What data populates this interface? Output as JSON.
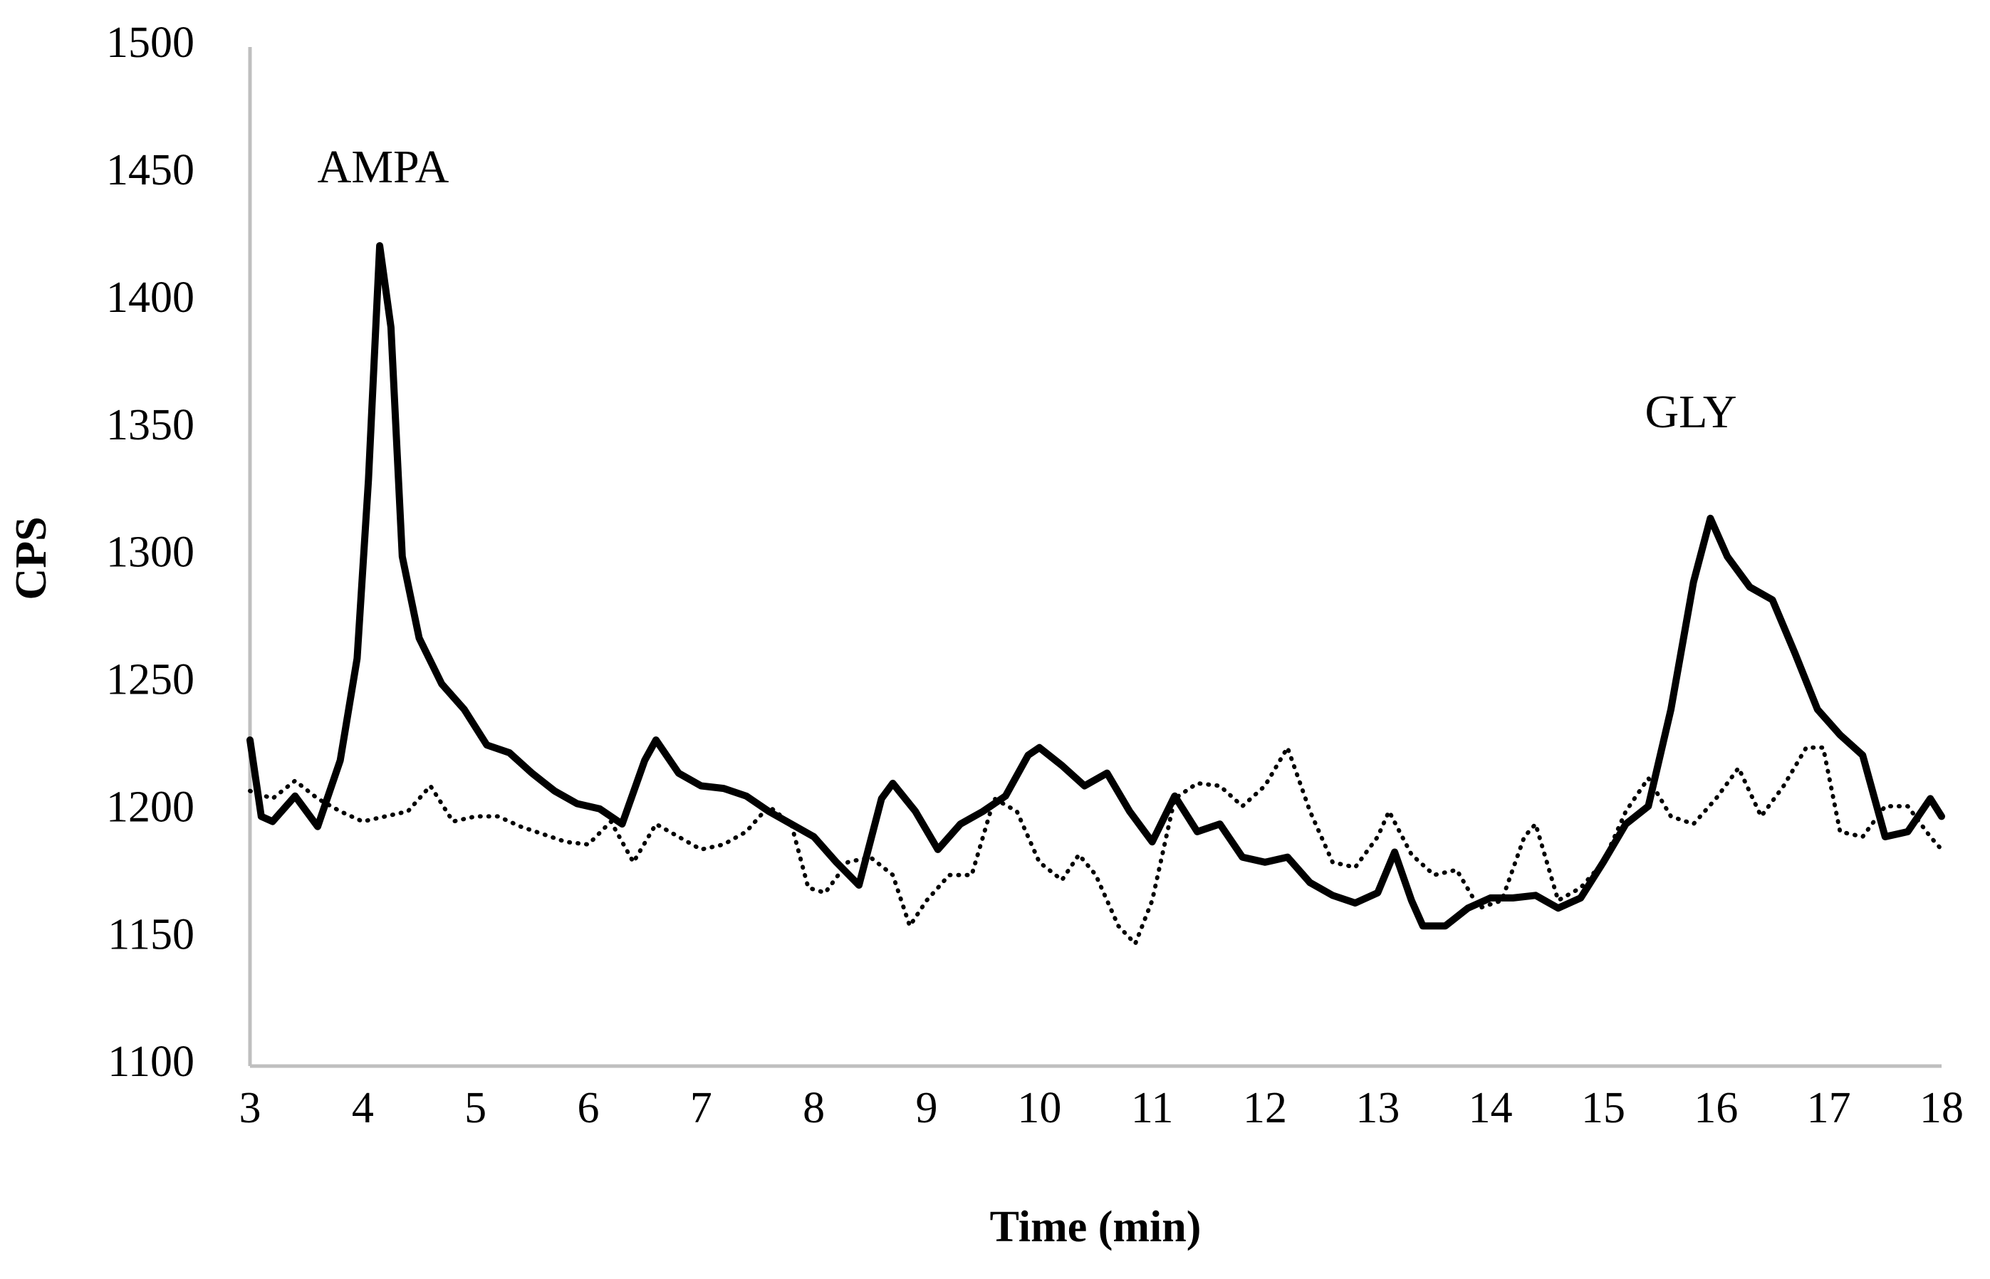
{
  "chart_data": {
    "type": "line",
    "x_label": "Time (min)",
    "y_label": "CPS",
    "annotations": [
      "AMPA",
      "GLY"
    ],
    "xlim": [
      3,
      18
    ],
    "xticks": [
      3,
      4,
      5,
      6,
      7,
      8,
      9,
      10,
      11,
      12,
      13,
      14,
      15,
      16,
      17,
      18
    ],
    "ylim": [
      1100,
      1500
    ],
    "yticks": [
      1100,
      1150,
      1200,
      1250,
      1300,
      1350,
      1400,
      1450,
      1500
    ],
    "grid": false,
    "axis_color": "#bfbfbf",
    "series": [
      {
        "color": "#000000",
        "dash": "solid",
        "x": [
          3.0,
          3.1,
          3.2,
          3.4,
          3.6,
          3.8,
          3.95,
          4.05,
          4.15,
          4.25,
          4.35,
          4.5,
          4.7,
          4.9,
          5.1,
          5.3,
          5.5,
          5.7,
          5.9,
          6.1,
          6.3,
          6.5,
          6.6,
          6.8,
          7.0,
          7.2,
          7.4,
          7.6,
          7.8,
          8.0,
          8.2,
          8.4,
          8.6,
          8.7,
          8.9,
          9.1,
          9.3,
          9.5,
          9.7,
          9.9,
          10.0,
          10.2,
          10.4,
          10.6,
          10.8,
          11.0,
          11.2,
          11.4,
          11.6,
          11.8,
          12.0,
          12.2,
          12.4,
          12.6,
          12.8,
          13.0,
          13.15,
          13.3,
          13.4,
          13.6,
          13.8,
          14.0,
          14.2,
          14.4,
          14.6,
          14.8,
          15.0,
          15.2,
          15.4,
          15.6,
          15.8,
          15.95,
          16.1,
          16.3,
          16.5,
          16.7,
          16.9,
          17.1,
          17.3,
          17.5,
          17.7,
          17.9,
          18.0
        ],
        "values": [
          1228,
          1198,
          1196,
          1206,
          1194,
          1220,
          1260,
          1330,
          1422,
          1390,
          1300,
          1268,
          1250,
          1240,
          1226,
          1223,
          1215,
          1208,
          1203,
          1201,
          1195,
          1220,
          1228,
          1215,
          1210,
          1209,
          1206,
          1200,
          1195,
          1190,
          1180,
          1171,
          1205,
          1211,
          1200,
          1185,
          1195,
          1200,
          1206,
          1222,
          1225,
          1218,
          1210,
          1215,
          1200,
          1188,
          1206,
          1192,
          1195,
          1182,
          1180,
          1182,
          1172,
          1167,
          1164,
          1168,
          1184,
          1165,
          1155,
          1155,
          1162,
          1166,
          1166,
          1167,
          1162,
          1166,
          1180,
          1195,
          1202,
          1240,
          1290,
          1315,
          1300,
          1288,
          1283,
          1262,
          1240,
          1230,
          1222,
          1190,
          1192,
          1205,
          1198
        ]
      },
      {
        "color": "#000000",
        "dash": "dotted",
        "x": [
          3.0,
          3.2,
          3.4,
          3.6,
          3.8,
          4.0,
          4.2,
          4.4,
          4.6,
          4.8,
          5.0,
          5.2,
          5.4,
          5.6,
          5.8,
          6.0,
          6.2,
          6.4,
          6.6,
          6.8,
          7.0,
          7.2,
          7.4,
          7.6,
          7.8,
          7.95,
          8.1,
          8.3,
          8.5,
          8.7,
          8.85,
          9.0,
          9.2,
          9.4,
          9.6,
          9.8,
          10.0,
          10.2,
          10.35,
          10.5,
          10.7,
          10.85,
          11.0,
          11.2,
          11.4,
          11.6,
          11.8,
          12.0,
          12.2,
          12.4,
          12.6,
          12.8,
          13.0,
          13.1,
          13.3,
          13.5,
          13.7,
          13.9,
          14.1,
          14.3,
          14.4,
          14.6,
          14.8,
          15.0,
          15.2,
          15.4,
          15.6,
          15.8,
          16.0,
          16.2,
          16.4,
          16.6,
          16.8,
          16.95,
          17.1,
          17.3,
          17.5,
          17.7,
          17.9,
          18.0
        ],
        "values": [
          1208,
          1205,
          1212,
          1205,
          1200,
          1196,
          1198,
          1200,
          1210,
          1196,
          1198,
          1198,
          1194,
          1191,
          1188,
          1187,
          1196,
          1180,
          1195,
          1190,
          1185,
          1187,
          1192,
          1202,
          1195,
          1170,
          1168,
          1180,
          1182,
          1175,
          1155,
          1165,
          1175,
          1175,
          1205,
          1200,
          1180,
          1173,
          1183,
          1175,
          1155,
          1148,
          1165,
          1205,
          1211,
          1210,
          1202,
          1210,
          1225,
          1200,
          1180,
          1178,
          1190,
          1200,
          1183,
          1175,
          1177,
          1162,
          1165,
          1190,
          1195,
          1165,
          1170,
          1180,
          1200,
          1213,
          1198,
          1195,
          1205,
          1217,
          1198,
          1210,
          1225,
          1225,
          1192,
          1190,
          1202,
          1202,
          1190,
          1185
        ]
      }
    ]
  }
}
